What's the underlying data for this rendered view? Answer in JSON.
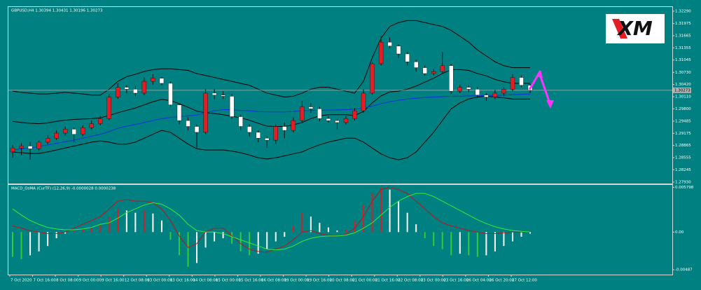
{
  "chart_data": [
    {
      "type": "candlestick",
      "title": "GBPUSD,H4 1.30394 1.30431 1.30196 1.30273",
      "logo": "XM",
      "open": [
        1.287,
        1.288,
        1.2885,
        1.2878,
        1.2895,
        1.2905,
        1.2918,
        1.2928,
        1.2915,
        1.2932,
        1.2942,
        1.2955,
        1.301,
        1.3035,
        1.303,
        1.302,
        1.305,
        1.3058,
        1.3045,
        1.299,
        1.295,
        1.2935,
        1.292,
        1.302,
        1.3015,
        1.3012,
        1.296,
        1.2935,
        1.292,
        1.2905,
        1.29,
        1.2935,
        1.2925,
        1.295,
        1.2985,
        1.298,
        1.2955,
        1.295,
        1.2945,
        1.2955,
        1.2975,
        1.302,
        1.3095,
        1.315,
        1.314,
        1.312,
        1.31,
        1.3085,
        1.307,
        1.3075,
        1.309,
        1.3025,
        1.3035,
        1.303,
        1.3015,
        1.301,
        1.302,
        1.303,
        1.306,
        1.304
      ],
      "high": [
        1.2888,
        1.2892,
        1.2895,
        1.29,
        1.2912,
        1.2925,
        1.2935,
        1.2932,
        1.2938,
        1.295,
        1.2962,
        1.3018,
        1.3045,
        1.304,
        1.3038,
        1.306,
        1.3068,
        1.3062,
        1.305,
        1.2995,
        1.2958,
        1.294,
        1.303,
        1.303,
        1.3025,
        1.3018,
        1.2965,
        1.294,
        1.2925,
        1.291,
        1.294,
        1.2945,
        1.2958,
        1.3,
        1.2995,
        1.2985,
        1.2962,
        1.2955,
        1.2962,
        1.2982,
        1.303,
        1.31,
        1.3165,
        1.3162,
        1.3145,
        1.3125,
        1.3105,
        1.309,
        1.3082,
        1.3125,
        1.3095,
        1.3042,
        1.304,
        1.3035,
        1.302,
        1.3028,
        1.3035,
        1.3068,
        1.3065,
        1.3043
      ],
      "low": [
        1.2855,
        1.2862,
        1.285,
        1.2872,
        1.289,
        1.29,
        1.2912,
        1.2895,
        1.291,
        1.2928,
        1.2938,
        1.295,
        1.3005,
        1.302,
        1.3012,
        1.3015,
        1.3042,
        1.304,
        1.2985,
        1.294,
        1.2925,
        1.288,
        1.2915,
        1.3005,
        1.3005,
        1.2955,
        1.2925,
        1.291,
        1.2895,
        1.288,
        1.289,
        1.2905,
        1.292,
        1.2945,
        1.297,
        1.2948,
        1.2945,
        1.2928,
        1.294,
        1.295,
        1.297,
        1.3015,
        1.309,
        1.3135,
        1.311,
        1.309,
        1.3075,
        1.3065,
        1.3065,
        1.307,
        1.3018,
        1.302,
        1.3022,
        1.3008,
        1.3,
        1.3005,
        1.3012,
        1.3025,
        1.3035,
        1.302
      ],
      "close": [
        1.288,
        1.2885,
        1.2878,
        1.2895,
        1.2905,
        1.2918,
        1.2928,
        1.2915,
        1.2932,
        1.2942,
        1.2955,
        1.301,
        1.3035,
        1.303,
        1.302,
        1.305,
        1.3058,
        1.3045,
        1.299,
        1.295,
        1.2935,
        1.292,
        1.302,
        1.3015,
        1.3012,
        1.296,
        1.2935,
        1.292,
        1.2905,
        1.29,
        1.2935,
        1.2925,
        1.295,
        1.2985,
        1.298,
        1.2955,
        1.295,
        1.2945,
        1.2955,
        1.2975,
        1.302,
        1.3095,
        1.315,
        1.314,
        1.312,
        1.31,
        1.3085,
        1.307,
        1.3075,
        1.309,
        1.3025,
        1.3035,
        1.303,
        1.3015,
        1.301,
        1.302,
        1.303,
        1.306,
        1.304,
        1.3027
      ],
      "up_color": "#e41c24",
      "down_color": "#ffffff",
      "lines": [
        {
          "color": "#000000",
          "values": [
            1.3025,
            1.3022,
            1.302,
            1.3018,
            1.3018,
            1.302,
            1.3022,
            1.302,
            1.3018,
            1.3015,
            1.3015,
            1.303,
            1.305,
            1.3062,
            1.3068,
            1.3075,
            1.308,
            1.3082,
            1.3082,
            1.308,
            1.3078,
            1.307,
            1.3065,
            1.306,
            1.3055,
            1.305,
            1.3045,
            1.304,
            1.303,
            1.302,
            1.3015,
            1.301,
            1.3012,
            1.302,
            1.303,
            1.3035,
            1.3035,
            1.303,
            1.3025,
            1.302,
            1.305,
            1.311,
            1.316,
            1.319,
            1.32,
            1.3205,
            1.3205,
            1.32,
            1.3195,
            1.319,
            1.318,
            1.3165,
            1.315,
            1.313,
            1.3115,
            1.31,
            1.309,
            1.3085,
            1.3085,
            1.3085
          ]
        },
        {
          "color": "#000000",
          "values": [
            1.287,
            1.2868,
            1.2866,
            1.2866,
            1.287,
            1.2875,
            1.288,
            1.2885,
            1.289,
            1.2895,
            1.2898,
            1.2895,
            1.289,
            1.289,
            1.2895,
            1.2905,
            1.2915,
            1.2925,
            1.292,
            1.2905,
            1.289,
            1.2878,
            1.2875,
            1.2875,
            1.2875,
            1.2872,
            1.2868,
            1.2862,
            1.2855,
            1.2852,
            1.2855,
            1.286,
            1.2865,
            1.287,
            1.288,
            1.2888,
            1.2895,
            1.29,
            1.2905,
            1.2905,
            1.2895,
            1.288,
            1.2865,
            1.2855,
            1.285,
            1.2855,
            1.287,
            1.2895,
            1.292,
            1.295,
            1.298,
            1.2995,
            1.3005,
            1.301,
            1.3012,
            1.301,
            1.3008,
            1.3005,
            1.3005,
            1.3005
          ]
        },
        {
          "color": "#000000",
          "values": [
            1.2948,
            1.2945,
            1.2943,
            1.2942,
            1.2944,
            1.2948,
            1.2951,
            1.2953,
            1.2954,
            1.2955,
            1.2957,
            1.2963,
            1.297,
            1.2976,
            1.2982,
            1.299,
            1.2998,
            1.3004,
            1.3001,
            1.2993,
            1.2984,
            1.2974,
            1.297,
            1.2968,
            1.2965,
            1.2961,
            1.2957,
            1.2951,
            1.2943,
            1.2936,
            1.2935,
            1.2935,
            1.2939,
            1.2945,
            1.2955,
            1.2962,
            1.2965,
            1.2965,
            1.2965,
            1.2963,
            1.2973,
            1.2995,
            1.3013,
            1.3023,
            1.3025,
            1.303,
            1.3038,
            1.3048,
            1.3058,
            1.307,
            1.308,
            1.308,
            1.3078,
            1.307,
            1.3064,
            1.3055,
            1.3049,
            1.3045,
            1.3045,
            1.3045
          ]
        },
        {
          "color": "#1030e0",
          "values": [
            1.2875,
            1.2878,
            1.288,
            1.2884,
            1.2888,
            1.2892,
            1.2896,
            1.29,
            1.2905,
            1.291,
            1.2915,
            1.2922,
            1.293,
            1.2936,
            1.294,
            1.2945,
            1.295,
            1.2955,
            1.2958,
            1.296,
            1.2962,
            1.2964,
            1.297,
            1.2975,
            1.2978,
            1.2978,
            1.2976,
            1.2975,
            1.2973,
            1.2972,
            1.2972,
            1.2972,
            1.2973,
            1.2975,
            1.2976,
            1.2976,
            1.2977,
            1.2977,
            1.2978,
            1.2979,
            1.2982,
            1.2987,
            1.2993,
            1.2998,
            1.3002,
            1.3005,
            1.3007,
            1.3009,
            1.301,
            1.3011,
            1.3012,
            1.3012,
            1.3013,
            1.3013,
            1.3014,
            1.3014,
            1.3015,
            1.3016,
            1.3017,
            1.3018
          ]
        }
      ],
      "current_price": 1.30273,
      "ylim": [
        1.27894,
        1.32397
      ],
      "yticks": [
        {
          "value": 1.3229,
          "label": "1.32290"
        },
        1.31975,
        1.31665,
        1.31355,
        1.31045,
        {
          "value": 1.3073,
          "label": "1.30730"
        },
        {
          "value": 1.3042,
          "label": "1.30420"
        },
        {
          "value": 1.3011,
          "label": "1.30110"
        },
        {
          "value": 1.298,
          "label": "1.29800"
        },
        1.29485,
        1.29175,
        1.28865,
        1.28555,
        1.28245,
        {
          "value": 1.2793,
          "label": "1.27930"
        }
      ],
      "xtick_labels": [
        "7 Oct 2020",
        "7 Oct 16:00",
        "8 Oct 08:00",
        "9 Oct 00:00",
        "9 Oct 16:00",
        "12 Oct 08:00",
        "13 Oct 00:00",
        "13 Oct 16:00",
        "14 Oct 08:00",
        "15 Oct 00:00",
        "15 Oct 16:00",
        "16 Oct 08:00",
        "19 Oct 00:00",
        "19 Oct 16:00",
        "20 Oct 08:00",
        "21 Oct 00:00",
        "21 Oct 16:00",
        "22 Oct 08:00",
        "23 Oct 00:00",
        "23 Oct 16:00",
        "26 Oct 04:00",
        "26 Oct 20:00",
        "27 Oct 12:00"
      ]
    },
    {
      "type": "macd",
      "title": "MACD_OsMA (CurTF) (12,26,9) -0.0000028 0.0000238",
      "histogram": [
        -0.0032,
        -0.0035,
        -0.003,
        -0.0025,
        -0.0018,
        -0.0008,
        -0.0002,
        0.0002,
        0.0004,
        0.0006,
        0.001,
        0.002,
        0.003,
        0.0028,
        0.0025,
        0.0028,
        0.0024,
        0.0015,
        -0.001,
        -0.003,
        -0.0045,
        -0.004,
        -0.002,
        -0.0012,
        -0.0008,
        -0.0015,
        -0.0025,
        -0.003,
        -0.0028,
        -0.0022,
        -0.0012,
        -0.0006,
        0.0008,
        0.0025,
        0.002,
        0.0012,
        0.0006,
        0.0002,
        0.0004,
        0.0015,
        0.0035,
        0.005,
        0.0058,
        0.0055,
        0.004,
        0.0025,
        0.001,
        -0.0008,
        -0.0018,
        -0.0022,
        -0.003,
        -0.0028,
        -0.003,
        -0.0032,
        -0.003,
        -0.0025,
        -0.0018,
        -0.0012,
        -0.0006,
        -0.0002
      ],
      "rising_color": "#d0202a",
      "falling_color": "#ffffff",
      "negative_color": "#33cc33",
      "lines": [
        {
          "color": "#c0141c",
          "values": [
            0.0008,
            0.0005,
            0.0002,
            0.0,
            -0.0002,
            -0.0002,
            0.0,
            0.0005,
            0.001,
            0.0015,
            0.002,
            0.003,
            0.004,
            0.0042,
            0.004,
            0.004,
            0.0038,
            0.003,
            0.0015,
            -0.0005,
            -0.002,
            -0.0015,
            0.0,
            0.0005,
            0.0005,
            -0.0005,
            -0.0015,
            -0.0022,
            -0.0025,
            -0.0026,
            -0.0022,
            -0.0018,
            -0.001,
            0.0,
            0.0002,
            -0.0002,
            -0.0004,
            -0.0005,
            -0.0003,
            0.0005,
            0.002,
            0.004,
            0.0055,
            0.0058,
            0.0055,
            0.005,
            0.004,
            0.003,
            0.002,
            0.0012,
            0.0008,
            0.0005,
            0.0002,
            0.0,
            -0.0002,
            -0.0002,
            -0.0001,
            0.0,
            0.0,
            0.0
          ]
        },
        {
          "color": "#33ee33",
          "values": [
            0.003,
            0.0022,
            0.0015,
            0.001,
            0.0006,
            0.0004,
            0.0003,
            0.0003,
            0.0004,
            0.0006,
            0.001,
            0.0012,
            0.0018,
            0.0025,
            0.003,
            0.0035,
            0.0038,
            0.0036,
            0.003,
            0.0022,
            0.001,
            0.0002,
            0.0,
            0.0,
            -0.0002,
            -0.0006,
            -0.001,
            -0.0014,
            -0.0018,
            -0.0022,
            -0.0023,
            -0.0022,
            -0.0018,
            -0.0012,
            -0.0008,
            -0.0006,
            -0.0005,
            -0.0005,
            -0.0004,
            -0.0001,
            0.0005,
            0.0012,
            0.0022,
            0.0032,
            0.004,
            0.0046,
            0.005,
            0.005,
            0.0046,
            0.004,
            0.0034,
            0.0028,
            0.0022,
            0.0016,
            0.0011,
            0.0007,
            0.0004,
            0.0002,
            0.0001,
            0.0
          ]
        }
      ],
      "ylim": [
        -0.0055,
        0.0061
      ],
      "yticks": [
        0.005798,
        {
          "value": 0,
          "label": "0.00"
        },
        -0.00487
      ]
    }
  ]
}
